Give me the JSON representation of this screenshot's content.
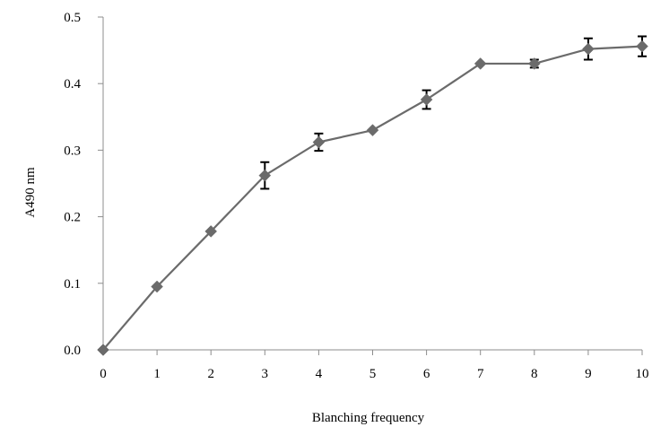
{
  "chart_data": {
    "type": "line",
    "title": "",
    "xlabel": "Blanching frequency",
    "ylabel": "A490 nm",
    "xlim": [
      0,
      10
    ],
    "ylim": [
      0,
      0.5
    ],
    "x_ticks": [
      "0",
      "1",
      "2",
      "3",
      "4",
      "5",
      "6",
      "7",
      "8",
      "9",
      "10"
    ],
    "y_ticks": [
      {
        "value": 0.0,
        "label": "0.0"
      },
      {
        "value": 0.1,
        "label": "0.1"
      },
      {
        "value": 0.2,
        "label": "0.2"
      },
      {
        "value": 0.3,
        "label": "0.3"
      },
      {
        "value": 0.4,
        "label": "0.4"
      },
      {
        "value": 0.5,
        "label": "0.5"
      }
    ],
    "grid": false,
    "legend": "none",
    "marker": "diamond",
    "series": [
      {
        "color": "#6b6b6b",
        "x": [
          0,
          1,
          2,
          3,
          4,
          5,
          6,
          7,
          8,
          9,
          10
        ],
        "values": [
          0.0,
          0.095,
          0.178,
          0.262,
          0.312,
          0.33,
          0.376,
          0.43,
          0.43,
          0.452,
          0.456
        ],
        "errors": [
          0,
          0,
          0,
          0.02,
          0.013,
          0,
          0.014,
          0,
          0.006,
          0.016,
          0.015
        ]
      }
    ]
  }
}
